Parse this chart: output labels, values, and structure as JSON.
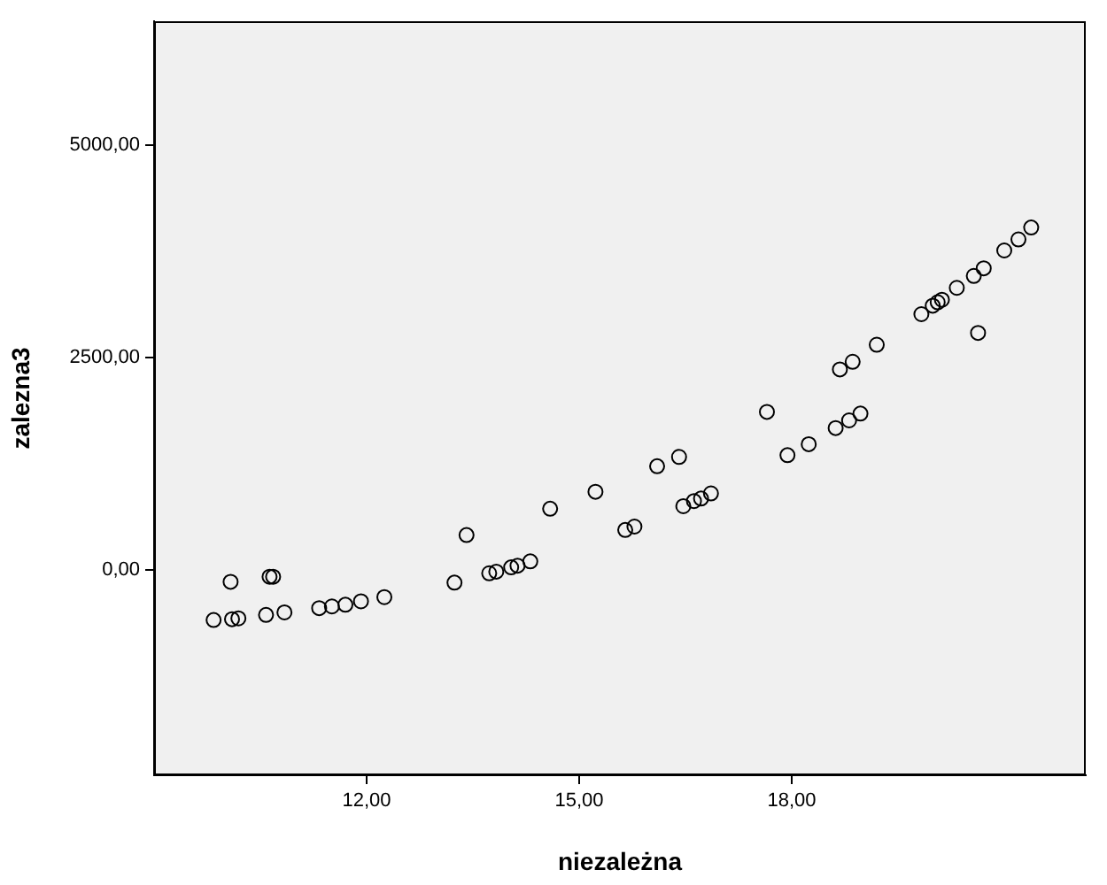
{
  "chart_data": {
    "type": "scatter",
    "xlabel": "niezależna",
    "ylabel": "zalezna3",
    "marker": "circle",
    "xlim": [
      9.0,
      22.15
    ],
    "ylim": [
      -2417,
      6458
    ],
    "xticks": [
      {
        "value": 12,
        "label": "12,00"
      },
      {
        "value": 15,
        "label": "15,00"
      },
      {
        "value": 18,
        "label": "18,00"
      }
    ],
    "yticks": [
      {
        "value": 0,
        "label": "0,00"
      },
      {
        "value": 2500,
        "label": "2500,00"
      },
      {
        "value": 5000,
        "label": "5000,00"
      }
    ],
    "series": [
      {
        "color": "#000000",
        "x": [
          9.84,
          10.08,
          10.1,
          10.19,
          10.58,
          10.63,
          10.68,
          10.84,
          11.33,
          11.51,
          11.7,
          11.92,
          12.25,
          13.24,
          13.41,
          13.73,
          13.83,
          14.04,
          14.13,
          14.31,
          14.59,
          15.23,
          15.65,
          15.78,
          16.1,
          16.41,
          16.47,
          16.62,
          16.72,
          16.86,
          17.65,
          17.94,
          18.24,
          18.62,
          18.81,
          18.97,
          18.68,
          18.86,
          19.2,
          19.83,
          19.99,
          20.06,
          20.12,
          20.33,
          20.57,
          20.71,
          20.63,
          21.0,
          21.2,
          21.38
        ],
        "values": [
          -590,
          -140,
          -580,
          -570,
          -530,
          -80,
          -80,
          -500,
          -450,
          -430,
          -410,
          -370,
          -320,
          -150,
          410,
          -40,
          -20,
          30,
          50,
          100,
          720,
          920,
          470,
          510,
          1220,
          1330,
          750,
          810,
          840,
          900,
          1860,
          1350,
          1480,
          1670,
          1760,
          1840,
          2360,
          2450,
          2650,
          3010,
          3110,
          3150,
          3180,
          3320,
          3460,
          3550,
          2790,
          3760,
          3890,
          4030
        ]
      }
    ]
  }
}
